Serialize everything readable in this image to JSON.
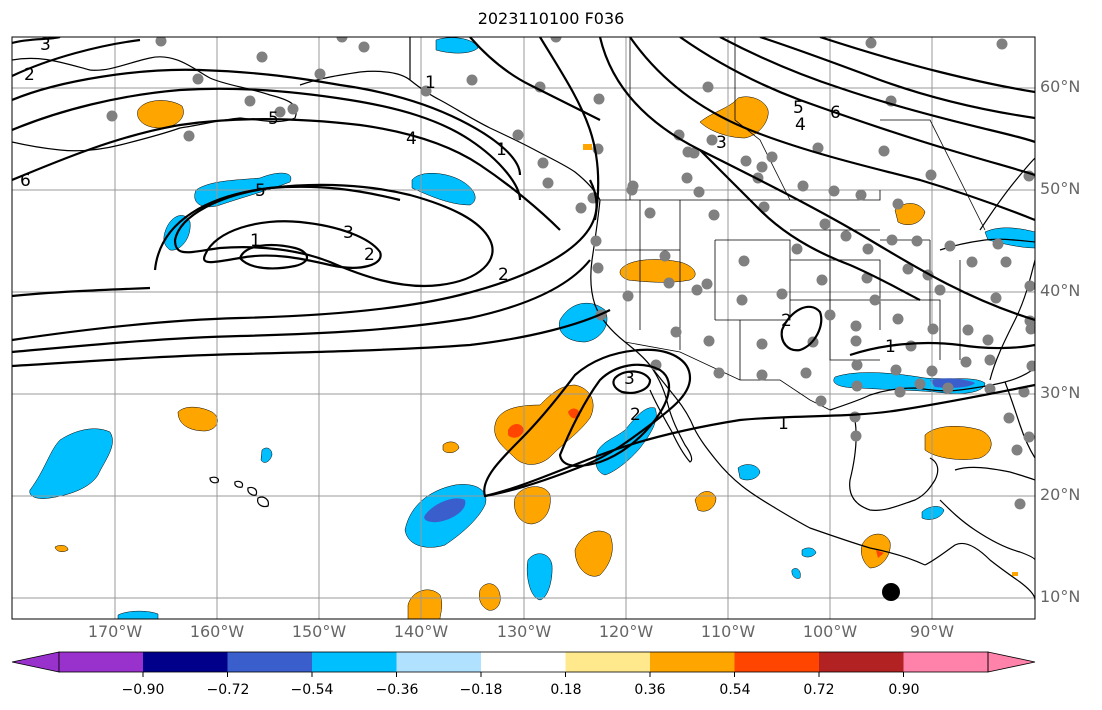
{
  "title": "2023110100 F036",
  "lat_labels": [
    "60°N",
    "50°N",
    "40°N",
    "30°N",
    "20°N",
    "10°N"
  ],
  "lon_labels": [
    "170°W",
    "160°W",
    "150°W",
    "140°W",
    "130°W",
    "120°W",
    "110°W",
    "100°W",
    "90°W"
  ],
  "contour_labels": [
    "1",
    "2",
    "3",
    "4",
    "5",
    "6",
    "1",
    "2",
    "3",
    "5",
    "1",
    "2",
    "3",
    "4",
    "5",
    "6",
    "2",
    "1",
    "3",
    "2",
    "1"
  ],
  "colorbar": {
    "colors": [
      "#9932cc",
      "#00008b",
      "#3a5fcd",
      "#00bfff",
      "#b0e2ff",
      "#ffffff",
      "#ffe98c",
      "#ffa500",
      "#ff4500",
      "#b22222",
      "#ff82ab"
    ],
    "labels": [
      "−0.90",
      "−0.72",
      "−0.54",
      "−0.36",
      "−0.18",
      "0.18",
      "0.36",
      "0.54",
      "0.72",
      "0.90"
    ]
  },
  "colors": {
    "gridline": "#999999",
    "coastline": "#000000",
    "station_dot": "#808080",
    "contour": "#000000"
  }
}
